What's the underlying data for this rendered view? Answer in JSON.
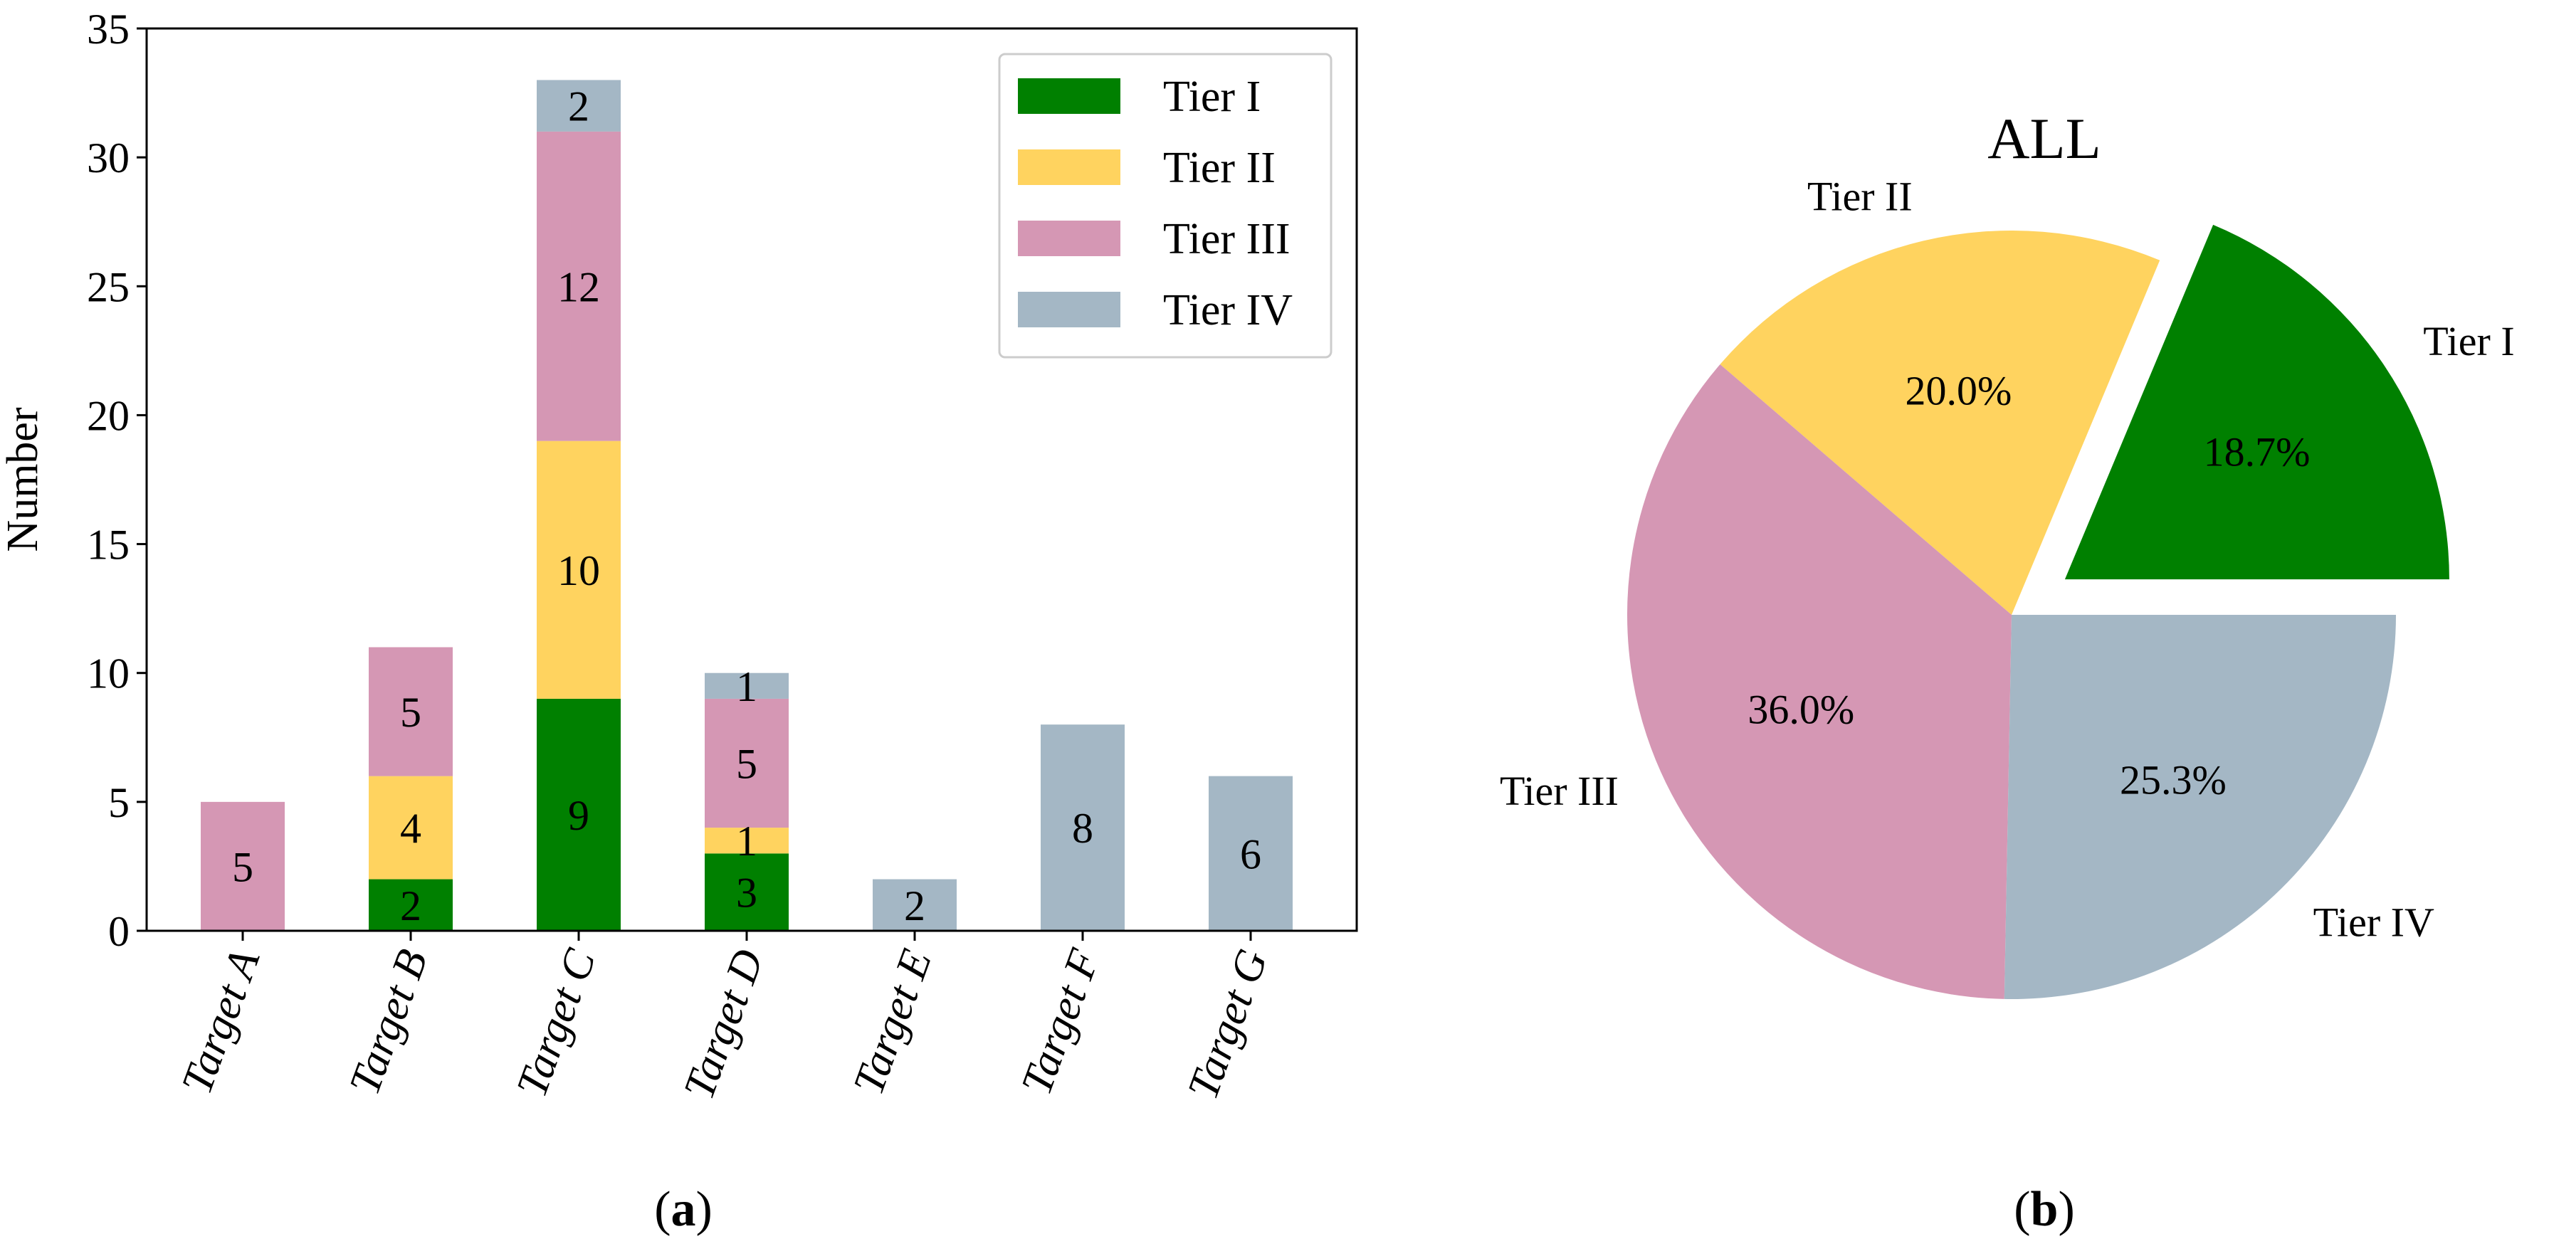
{
  "colors": {
    "tier1": "#008000",
    "tier2": "#FFD35F",
    "tier3": "#D597B4",
    "tier4": "#A4B7C5"
  },
  "panel_labels": {
    "a": "(a)",
    "b": "(b)"
  },
  "chart_data": [
    {
      "type": "bar",
      "stacked": true,
      "categories": [
        "Target A",
        "Target B",
        "Target C",
        "Target D",
        "Target E",
        "Target F",
        "Target G"
      ],
      "series": [
        {
          "name": "Tier I",
          "color_key": "tier1",
          "values": [
            0,
            2,
            9,
            3,
            0,
            0,
            0
          ]
        },
        {
          "name": "Tier II",
          "color_key": "tier2",
          "values": [
            0,
            4,
            10,
            1,
            0,
            0,
            0
          ]
        },
        {
          "name": "Tier III",
          "color_key": "tier3",
          "values": [
            5,
            5,
            12,
            5,
            0,
            0,
            0
          ]
        },
        {
          "name": "Tier IV",
          "color_key": "tier4",
          "values": [
            0,
            0,
            2,
            1,
            2,
            8,
            6
          ]
        }
      ],
      "ylabel": "Number",
      "xlabel": "",
      "ylim": [
        0,
        35
      ],
      "yticks": [
        0,
        5,
        10,
        15,
        20,
        25,
        30,
        35
      ],
      "grid": false,
      "legend": "top-right"
    },
    {
      "type": "pie",
      "title": "ALL",
      "slices": [
        {
          "label": "Tier I",
          "value": 18.7,
          "pct_label": "18.7%",
          "color_key": "tier1",
          "exploded": true
        },
        {
          "label": "Tier II",
          "value": 20.0,
          "pct_label": "20.0%",
          "color_key": "tier2",
          "exploded": false
        },
        {
          "label": "Tier III",
          "value": 36.0,
          "pct_label": "36.0%",
          "color_key": "tier3",
          "exploded": false
        },
        {
          "label": "Tier IV",
          "value": 25.3,
          "pct_label": "25.3%",
          "color_key": "tier4",
          "exploded": false
        }
      ],
      "start_angle": 0,
      "direction": "counterclockwise"
    }
  ]
}
